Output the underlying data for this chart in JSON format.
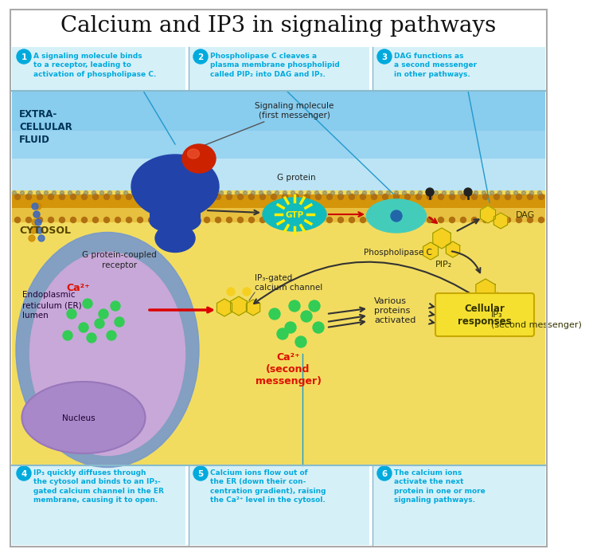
{
  "title": "Calcium and IP3 in signaling pathways",
  "bg_color": "#ffffff",
  "panel_bg": "#d6f0f8",
  "extracellular_bg": "#aaddf5",
  "extracellular_gradient_top": "#c8ecf8",
  "cytosol_bg": "#f5e070",
  "er_bg": "#c8a8d8",
  "nucleus_bg": "#a888c8",
  "step_circle_color": "#00aadd",
  "step_text_color": "#00aadd",
  "step1_text": "A signaling molecule binds\nto a receptor, leading to\nactivation of phospholipase C.",
  "step2_text": "Phospholipase C cleaves a\nplasma membrane phospholipid\ncalled PIP₂ into DAG and IP₃.",
  "step3_text": "DAG functions as\na second messenger\nin other pathways.",
  "step4_text": "IP₃ quickly diffuses through\nthe cytosol and binds to an IP₃-\ngated calcium channel in the ER\nmembrane, causing it to open.",
  "step5_text": "Calcium ions flow out of\nthe ER (down their con-\ncentration gradient), raising\nthe Ca²⁺ level in the cytosol.",
  "step6_text": "The calcium ions\nactivate the next\nprotein in one or more\nsignaling pathways.",
  "label_extracellular": "EXTRA-\nCELLULAR\nFLUID",
  "label_cytosol": "CYTOSOL",
  "label_er": "Endoplasmic\nreticulum (ER)\nlumen",
  "label_nucleus": "Nucleus",
  "label_receptor": "G protein-coupled\nreceptor",
  "label_gprotein": "G protein",
  "label_gtp": "GTP",
  "label_phospholipase": "Phospholipase C",
  "label_pip2": "PIP₂",
  "label_dag": "DAG",
  "label_ip3": "IP₃\n(second messenger)",
  "label_ip3_channel": "IP₃-gated\ncalcium channel",
  "label_ca2_er": "Ca²⁺",
  "label_ca2_cytosol": "Ca²⁺\n(second\nmessenger)",
  "label_signaling_mol": "Signaling molecule\n(first messenger)",
  "label_various": "Various\nproteins\nactivated",
  "label_cellular": "Cellular\nresponses",
  "receptor_color": "#2244aa",
  "gprotein_color": "#11bbbb",
  "phospholipase_color": "#44ccbb",
  "pip2_hex_color": "#f5d020",
  "ip3_hex_color": "#f5d020",
  "dag_hex_color": "#f5d020",
  "ca_dot_color": "#33cc55",
  "mem_outer_color": "#d4950a",
  "mem_inner_color": "#e8c040",
  "mem_dot_color": "#b07010",
  "cellular_box_color": "#f5e030",
  "cellular_box_border": "#c8a800",
  "arrow_color": "#333333",
  "red_arrow_color": "#dd0000",
  "blue_line_color": "#2299cc"
}
